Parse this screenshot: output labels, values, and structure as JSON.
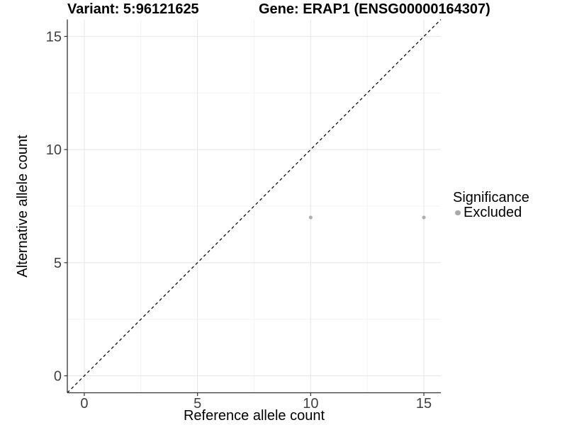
{
  "chart_data": {
    "type": "scatter",
    "title_left": "Variant: 5:96121625",
    "title_right": "Gene: ERAP1 (ENSG00000164307)",
    "xlabel": "Reference allele count",
    "ylabel": "Alternative allele count",
    "xlim": [
      -0.75,
      15.75
    ],
    "ylim": [
      -0.75,
      15.75
    ],
    "x_major_ticks": [
      0,
      5,
      10,
      15
    ],
    "y_major_ticks": [
      0,
      5,
      10,
      15
    ],
    "x_minor_ticks": [
      2.5,
      7.5,
      12.5
    ],
    "y_minor_ticks": [
      2.5,
      7.5,
      12.5
    ],
    "grid": "on",
    "identity_line": {
      "slope": 1,
      "intercept": 0,
      "style": "dashed",
      "color": "#1a1a1a"
    },
    "series": [
      {
        "name": "Excluded",
        "color": "#b0b0b0",
        "points": [
          {
            "x": 10,
            "y": 7
          },
          {
            "x": 15,
            "y": 7
          }
        ]
      }
    ],
    "legend": {
      "title": "Significance",
      "position": "right",
      "entries": [
        {
          "label": "Excluded",
          "color": "#a9a9a9",
          "marker": "circle-icon"
        }
      ]
    },
    "colors": {
      "background": "#ffffff",
      "grid_major": "#e8e8e8",
      "grid_minor": "#f3f3f3",
      "axis_line": "#333333",
      "tick_mark": "#333333",
      "tick_label": "#404040",
      "text": "#000000"
    }
  }
}
